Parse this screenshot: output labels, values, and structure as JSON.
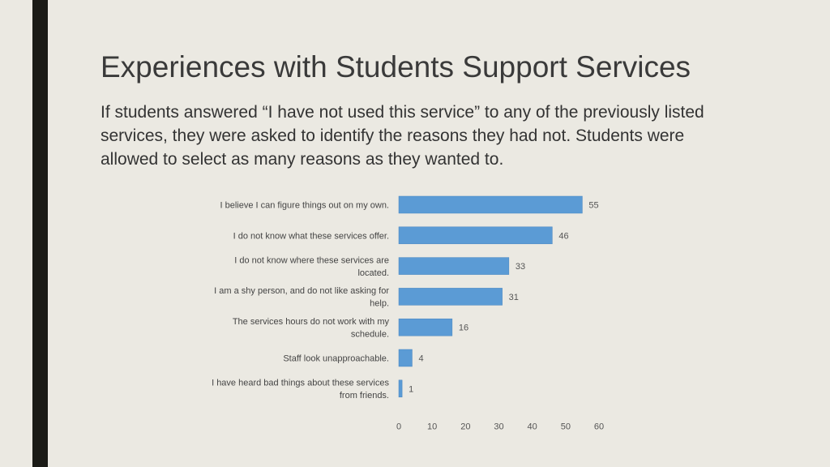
{
  "slide": {
    "title": "Experiences with Students Support Services",
    "body": "If students answered “I have not used this service” to any of the previously listed services, they were asked to identify the reasons they had not.  Students were allowed to select as many reasons as they wanted to."
  },
  "colors": {
    "bar": "#5b9bd5",
    "background": "#ebe9e2",
    "accent_bar": "#1b1b16"
  },
  "chart_data": {
    "type": "bar",
    "orientation": "horizontal",
    "categories": [
      [
        "I believe I can figure things out on my own."
      ],
      [
        "I do not know what these services offer."
      ],
      [
        "I do not know where these services are",
        "located."
      ],
      [
        "I am a shy person, and do not like asking for",
        "help."
      ],
      [
        "The services hours do not work with my",
        "schedule."
      ],
      [
        "Staff look unapproachable."
      ],
      [
        "I have heard bad things about these services",
        "from friends."
      ]
    ],
    "values": [
      55,
      46,
      33,
      31,
      16,
      4,
      1
    ],
    "xlim": [
      0,
      60
    ],
    "xticks": [
      "0",
      "10",
      "20",
      "30",
      "40",
      "50",
      "60"
    ],
    "grid": false,
    "data_labels": true
  }
}
